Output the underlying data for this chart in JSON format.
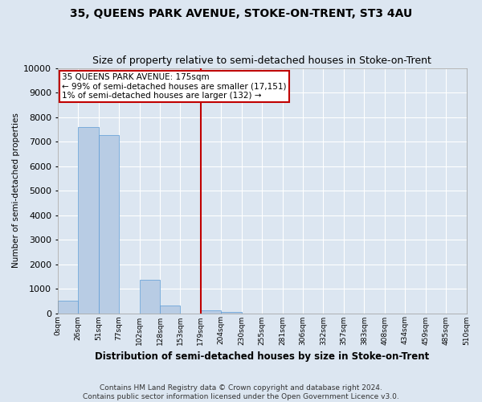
{
  "title": "35, QUEENS PARK AVENUE, STOKE-ON-TRENT, ST3 4AU",
  "subtitle": "Size of property relative to semi-detached houses in Stoke-on-Trent",
  "xlabel": "Distribution of semi-detached houses by size in Stoke-on-Trent",
  "ylabel": "Number of semi-detached properties",
  "footer": "Contains HM Land Registry data © Crown copyright and database right 2024.\nContains public sector information licensed under the Open Government Licence v3.0.",
  "bin_labels": [
    "0sqm",
    "26sqm",
    "51sqm",
    "77sqm",
    "102sqm",
    "128sqm",
    "153sqm",
    "179sqm",
    "204sqm",
    "230sqm",
    "255sqm",
    "281sqm",
    "306sqm",
    "332sqm",
    "357sqm",
    "383sqm",
    "408sqm",
    "434sqm",
    "459sqm",
    "485sqm",
    "510sqm"
  ],
  "bar_values": [
    500,
    7600,
    7250,
    0,
    1350,
    300,
    0,
    100,
    50,
    0,
    0,
    0,
    0,
    0,
    0,
    0,
    0,
    0,
    0,
    0
  ],
  "bar_color": "#b8cce4",
  "bar_edge_color": "#5b9bd5",
  "vline_label_index": 7,
  "vline_color": "#c00000",
  "annotation_text": "35 QUEENS PARK AVENUE: 175sqm\n← 99% of semi-detached houses are smaller (17,151)\n1% of semi-detached houses are larger (132) →",
  "annotation_box_color": "#c00000",
  "ylim": [
    0,
    10000
  ],
  "yticks": [
    0,
    1000,
    2000,
    3000,
    4000,
    5000,
    6000,
    7000,
    8000,
    9000,
    10000
  ],
  "background_color": "#dce6f1",
  "plot_background": "#dce6f1",
  "grid_color": "#ffffff",
  "title_fontsize": 10,
  "subtitle_fontsize": 9,
  "footer_fontsize": 6.5
}
